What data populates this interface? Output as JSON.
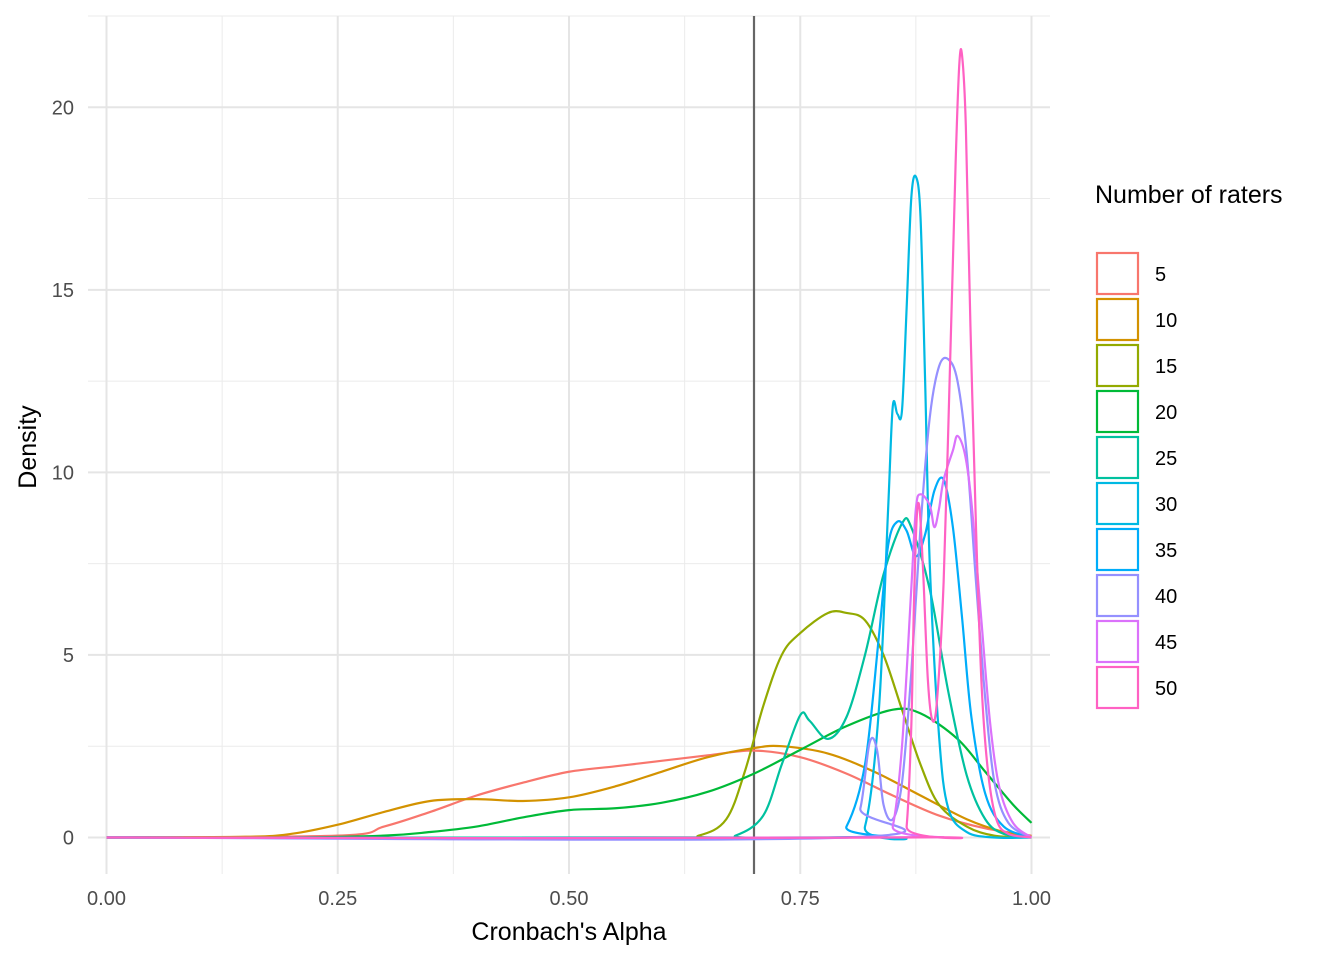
{
  "chart_data": {
    "type": "line",
    "title": "",
    "xlabel": "Cronbach's Alpha",
    "ylabel": "Density",
    "xlim": [
      -0.02,
      1.02
    ],
    "ylim": [
      -1.0,
      22.5
    ],
    "x_ticks": [
      0.0,
      0.25,
      0.5,
      0.75,
      1.0
    ],
    "x_tick_labels": [
      "0.00",
      "0.25",
      "0.50",
      "0.75",
      "1.00"
    ],
    "y_ticks": [
      0,
      5,
      10,
      15,
      20
    ],
    "y_tick_labels": [
      "0",
      "5",
      "10",
      "15",
      "20"
    ],
    "grid": true,
    "reference_line": {
      "x": 0.7,
      "color": "#666666"
    },
    "legend": {
      "title": "Number of raters",
      "position": "right"
    },
    "series": [
      {
        "name": "5",
        "color": "#F8766D",
        "points": [
          [
            0,
            0
          ],
          [
            0.25,
            0.05
          ],
          [
            0.3,
            0.3
          ],
          [
            0.35,
            0.7
          ],
          [
            0.4,
            1.15
          ],
          [
            0.45,
            1.5
          ],
          [
            0.5,
            1.8
          ],
          [
            0.55,
            1.95
          ],
          [
            0.6,
            2.1
          ],
          [
            0.65,
            2.25
          ],
          [
            0.7,
            2.38
          ],
          [
            0.75,
            2.2
          ],
          [
            0.8,
            1.75
          ],
          [
            0.85,
            1.15
          ],
          [
            0.9,
            0.6
          ],
          [
            0.95,
            0.25
          ],
          [
            1.0,
            0.05
          ]
        ]
      },
      {
        "name": "10",
        "color": "#D39200",
        "points": [
          [
            0,
            0
          ],
          [
            0.15,
            0.02
          ],
          [
            0.2,
            0.1
          ],
          [
            0.25,
            0.35
          ],
          [
            0.3,
            0.7
          ],
          [
            0.35,
            1.0
          ],
          [
            0.4,
            1.05
          ],
          [
            0.45,
            1.0
          ],
          [
            0.5,
            1.1
          ],
          [
            0.55,
            1.4
          ],
          [
            0.6,
            1.8
          ],
          [
            0.65,
            2.2
          ],
          [
            0.7,
            2.45
          ],
          [
            0.73,
            2.5
          ],
          [
            0.78,
            2.3
          ],
          [
            0.83,
            1.8
          ],
          [
            0.88,
            1.15
          ],
          [
            0.93,
            0.5
          ],
          [
            0.97,
            0.15
          ],
          [
            1.0,
            0.03
          ]
        ]
      },
      {
        "name": "15",
        "color": "#93AA00",
        "points": [
          [
            0,
            0
          ],
          [
            0.6,
            0
          ],
          [
            0.64,
            0.05
          ],
          [
            0.67,
            0.5
          ],
          [
            0.69,
            1.8
          ],
          [
            0.71,
            3.6
          ],
          [
            0.73,
            5.0
          ],
          [
            0.75,
            5.6
          ],
          [
            0.78,
            6.15
          ],
          [
            0.8,
            6.15
          ],
          [
            0.82,
            5.95
          ],
          [
            0.84,
            5.0
          ],
          [
            0.86,
            3.5
          ],
          [
            0.88,
            2.0
          ],
          [
            0.9,
            0.9
          ],
          [
            0.93,
            0.3
          ],
          [
            0.96,
            0.05
          ],
          [
            1.0,
            0
          ]
        ]
      },
      {
        "name": "20",
        "color": "#00BA38",
        "points": [
          [
            0,
            0
          ],
          [
            0.2,
            0
          ],
          [
            0.3,
            0.05
          ],
          [
            0.35,
            0.15
          ],
          [
            0.4,
            0.3
          ],
          [
            0.45,
            0.55
          ],
          [
            0.5,
            0.75
          ],
          [
            0.55,
            0.8
          ],
          [
            0.6,
            0.95
          ],
          [
            0.65,
            1.25
          ],
          [
            0.7,
            1.75
          ],
          [
            0.75,
            2.4
          ],
          [
            0.8,
            3.05
          ],
          [
            0.85,
            3.5
          ],
          [
            0.88,
            3.4
          ],
          [
            0.92,
            2.7
          ],
          [
            0.95,
            1.8
          ],
          [
            0.98,
            0.9
          ],
          [
            1.0,
            0.4
          ]
        ]
      },
      {
        "name": "25",
        "color": "#00C19F",
        "points": [
          [
            0,
            0
          ],
          [
            0.65,
            0
          ],
          [
            0.68,
            0.05
          ],
          [
            0.71,
            0.6
          ],
          [
            0.73,
            2.0
          ],
          [
            0.75,
            3.35
          ],
          [
            0.76,
            3.2
          ],
          [
            0.78,
            2.7
          ],
          [
            0.8,
            3.3
          ],
          [
            0.82,
            5.0
          ],
          [
            0.84,
            7.2
          ],
          [
            0.86,
            8.6
          ],
          [
            0.87,
            8.5
          ],
          [
            0.89,
            6.8
          ],
          [
            0.91,
            4.0
          ],
          [
            0.93,
            1.7
          ],
          [
            0.95,
            0.5
          ],
          [
            0.97,
            0.1
          ],
          [
            1.0,
            0
          ]
        ]
      },
      {
        "name": "30",
        "color": "#00B9E3",
        "points": [
          [
            0,
            0
          ],
          [
            0.8,
            0
          ],
          [
            0.82,
            0.3
          ],
          [
            0.835,
            3.5
          ],
          [
            0.845,
            9.0
          ],
          [
            0.85,
            11.8
          ],
          [
            0.855,
            11.6
          ],
          [
            0.86,
            11.7
          ],
          [
            0.865,
            14.5
          ],
          [
            0.87,
            17.5
          ],
          [
            0.875,
            18.1
          ],
          [
            0.88,
            17.0
          ],
          [
            0.885,
            12.5
          ],
          [
            0.89,
            7.5
          ],
          [
            0.9,
            2.8
          ],
          [
            0.91,
            0.8
          ],
          [
            0.93,
            0.15
          ],
          [
            0.96,
            0
          ],
          [
            1.0,
            0
          ]
        ]
      },
      {
        "name": "35",
        "color": "#00ADFA",
        "points": [
          [
            0,
            0
          ],
          [
            0.78,
            0
          ],
          [
            0.8,
            0.3
          ],
          [
            0.82,
            2.0
          ],
          [
            0.835,
            5.5
          ],
          [
            0.845,
            8.0
          ],
          [
            0.855,
            8.65
          ],
          [
            0.865,
            8.4
          ],
          [
            0.875,
            7.7
          ],
          [
            0.885,
            8.3
          ],
          [
            0.895,
            9.5
          ],
          [
            0.905,
            9.8
          ],
          [
            0.915,
            8.5
          ],
          [
            0.925,
            6.0
          ],
          [
            0.935,
            3.3
          ],
          [
            0.95,
            1.2
          ],
          [
            0.97,
            0.3
          ],
          [
            1.0,
            0
          ]
        ]
      },
      {
        "name": "40",
        "color": "#9590FF",
        "points": [
          [
            0,
            0
          ],
          [
            0.8,
            0
          ],
          [
            0.815,
            0.8
          ],
          [
            0.825,
            2.6
          ],
          [
            0.833,
            2.4
          ],
          [
            0.84,
            0.9
          ],
          [
            0.85,
            0.5
          ],
          [
            0.86,
            1.5
          ],
          [
            0.87,
            4.5
          ],
          [
            0.88,
            8.5
          ],
          [
            0.89,
            11.5
          ],
          [
            0.9,
            12.9
          ],
          [
            0.91,
            13.1
          ],
          [
            0.92,
            12.5
          ],
          [
            0.93,
            10.5
          ],
          [
            0.94,
            7.0
          ],
          [
            0.95,
            3.8
          ],
          [
            0.96,
            1.5
          ],
          [
            0.975,
            0.4
          ],
          [
            1.0,
            0
          ]
        ]
      },
      {
        "name": "45",
        "color": "#DB72FB",
        "points": [
          [
            0,
            0
          ],
          [
            0.84,
            0
          ],
          [
            0.85,
            0.3
          ],
          [
            0.86,
            2.5
          ],
          [
            0.87,
            6.8
          ],
          [
            0.875,
            9.0
          ],
          [
            0.88,
            9.4
          ],
          [
            0.89,
            9.1
          ],
          [
            0.895,
            8.5
          ],
          [
            0.9,
            9.0
          ],
          [
            0.905,
            9.8
          ],
          [
            0.915,
            10.6
          ],
          [
            0.92,
            11.0
          ],
          [
            0.928,
            10.5
          ],
          [
            0.935,
            9.2
          ],
          [
            0.945,
            6.2
          ],
          [
            0.955,
            3.2
          ],
          [
            0.965,
            1.4
          ],
          [
            0.98,
            0.4
          ],
          [
            1.0,
            0
          ]
        ]
      },
      {
        "name": "50",
        "color": "#FF61C3",
        "points": [
          [
            0,
            0
          ],
          [
            0.86,
            0
          ],
          [
            0.865,
            0.3
          ],
          [
            0.87,
            3.0
          ],
          [
            0.873,
            6.5
          ],
          [
            0.876,
            8.8
          ],
          [
            0.879,
            9.0
          ],
          [
            0.883,
            7.2
          ],
          [
            0.888,
            4.3
          ],
          [
            0.893,
            3.2
          ],
          [
            0.898,
            3.8
          ],
          [
            0.905,
            7.0
          ],
          [
            0.912,
            13.0
          ],
          [
            0.918,
            18.5
          ],
          [
            0.922,
            21.2
          ],
          [
            0.925,
            21.4
          ],
          [
            0.929,
            19.5
          ],
          [
            0.934,
            14.0
          ],
          [
            0.94,
            8.5
          ],
          [
            0.946,
            4.2
          ],
          [
            0.953,
            1.8
          ],
          [
            0.962,
            0.5
          ],
          [
            0.975,
            0.1
          ],
          [
            1.0,
            0
          ]
        ]
      }
    ]
  }
}
